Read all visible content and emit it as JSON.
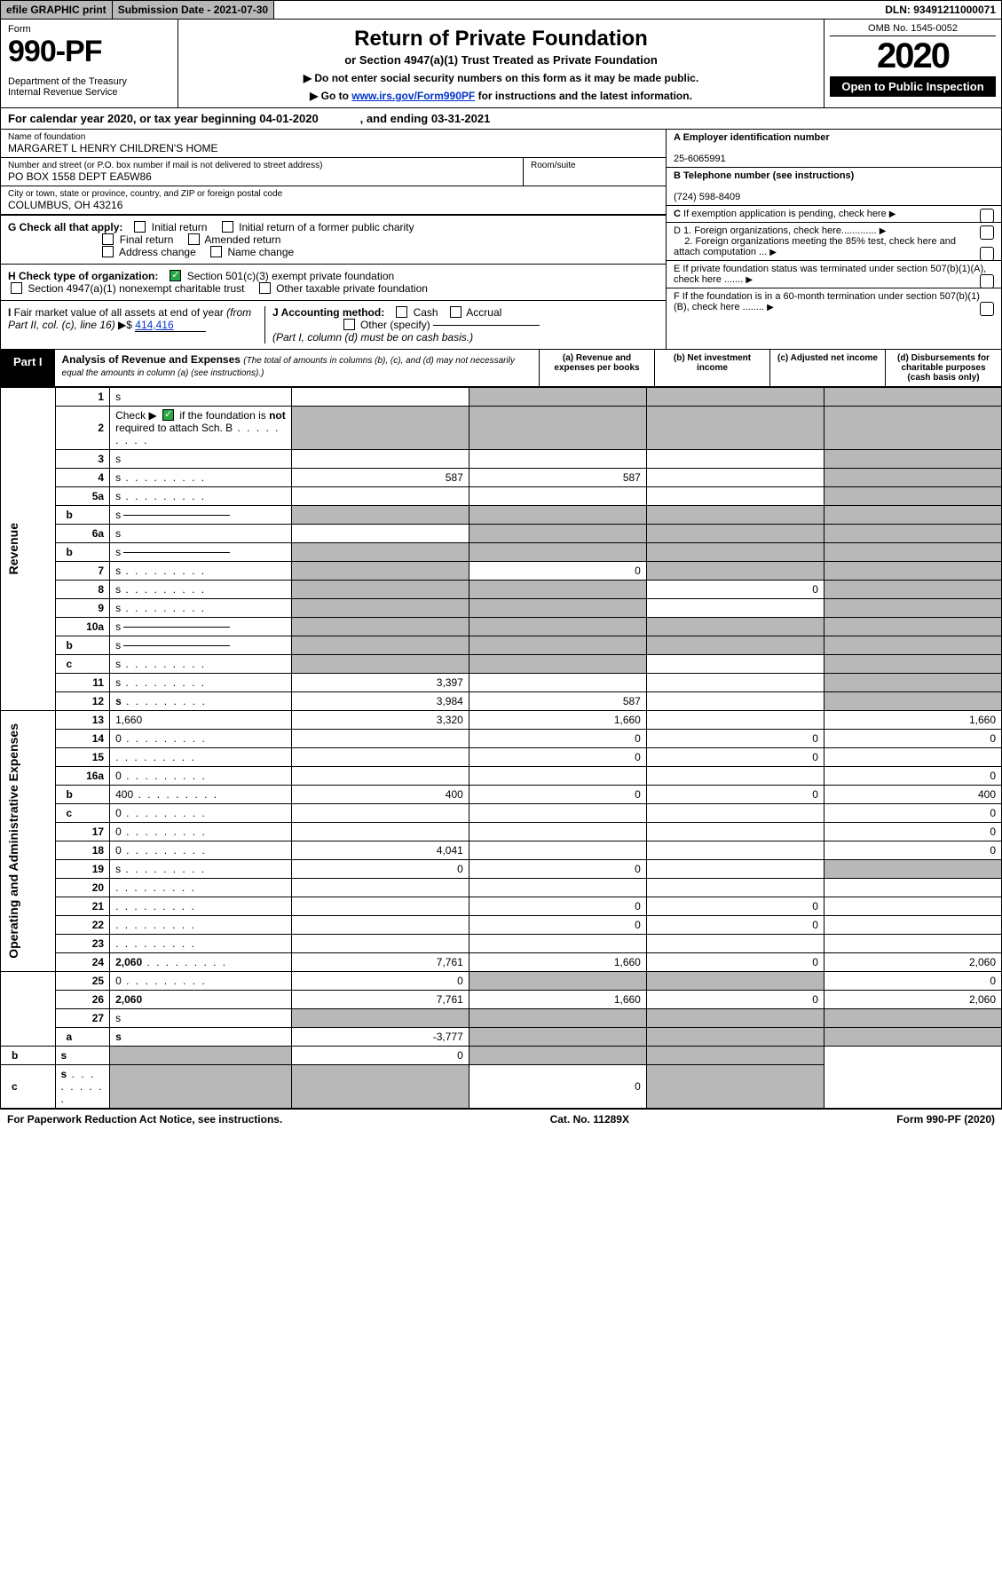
{
  "top": {
    "efile": "efile GRAPHIC print",
    "submission": "Submission Date - 2021-07-30",
    "dln": "DLN: 93491211000071"
  },
  "header": {
    "form_label": "Form",
    "form_number": "990-PF",
    "dept": "Department of the Treasury\nInternal Revenue Service",
    "title": "Return of Private Foundation",
    "subtitle": "or Section 4947(a)(1) Trust Treated as Private Foundation",
    "inst1": "▶ Do not enter social security numbers on this form as it may be made public.",
    "inst2_pre": "▶ Go to ",
    "inst2_link": "www.irs.gov/Form990PF",
    "inst2_post": " for instructions and the latest information.",
    "omb": "OMB No. 1545-0052",
    "year": "2020",
    "open_public": "Open to Public Inspection"
  },
  "cal_year": "For calendar year 2020, or tax year beginning 04-01-2020             , and ending 03-31-2021",
  "identity": {
    "name_label": "Name of foundation",
    "name": "MARGARET L HENRY CHILDREN'S HOME",
    "addr_label": "Number and street (or P.O. box number if mail is not delivered to street address)",
    "addr": "PO BOX 1558 DEPT EA5W86",
    "room_label": "Room/suite",
    "city_label": "City or town, state or province, country, and ZIP or foreign postal code",
    "city": "COLUMBUS, OH  43216",
    "ein_label": "A Employer identification number",
    "ein": "25-6065991",
    "tel_label": "B Telephone number (see instructions)",
    "tel": "(724) 598-8409",
    "c_label": "C If exemption application is pending, check here",
    "d1": "D 1. Foreign organizations, check here.............",
    "d2": "2. Foreign organizations meeting the 85% test, check here and attach computation ...",
    "e_label": "E  If private foundation status was terminated under section 507(b)(1)(A), check here .......",
    "f_label": "F  If the foundation is in a 60-month termination under section 507(b)(1)(B), check here ........"
  },
  "g": {
    "label": "G Check all that apply:",
    "opts": [
      "Initial return",
      "Initial return of a former public charity",
      "Final return",
      "Amended return",
      "Address change",
      "Name change"
    ]
  },
  "h": {
    "label": "H Check type of organization:",
    "opt1": "Section 501(c)(3) exempt private foundation",
    "opt2": "Section 4947(a)(1) nonexempt charitable trust",
    "opt3": "Other taxable private foundation"
  },
  "i": {
    "label": "I Fair market value of all assets at end of year (from Part II, col. (c), line 16) ▶$",
    "val": "414,416"
  },
  "j": {
    "label": "J Accounting method:",
    "cash": "Cash",
    "accrual": "Accrual",
    "other": "Other (specify)",
    "note": "(Part I, column (d) must be on cash basis.)"
  },
  "part1": {
    "label": "Part I",
    "title": "Analysis of Revenue and Expenses",
    "note": "(The total of amounts in columns (b), (c), and (d) may not necessarily equal the amounts in column (a) (see instructions).)",
    "col_a": "(a)    Revenue and expenses per books",
    "col_b": "(b)  Net investment income",
    "col_c": "(c)  Adjusted net income",
    "col_d": "(d)  Disbursements for charitable purposes (cash basis only)"
  },
  "side": {
    "revenue": "Revenue",
    "expenses": "Operating and Administrative Expenses"
  },
  "rows": [
    {
      "n": "1",
      "d": "s",
      "a": "",
      "b": "s",
      "c": "s"
    },
    {
      "n": "2",
      "d": "s",
      "a": "s",
      "b": "s",
      "c": "s",
      "dots": true,
      "note": "not"
    },
    {
      "n": "3",
      "d": "s",
      "a": "",
      "b": "",
      "c": ""
    },
    {
      "n": "4",
      "d": "s",
      "a": "587",
      "b": "587",
      "c": "",
      "dots": true
    },
    {
      "n": "5a",
      "d": "s",
      "a": "",
      "b": "",
      "c": "",
      "dots": true
    },
    {
      "n": "b",
      "d": "s",
      "a": "s",
      "b": "s",
      "c": "s",
      "uline": true,
      "sub": true
    },
    {
      "n": "6a",
      "d": "s",
      "a": "",
      "b": "s",
      "c": "s"
    },
    {
      "n": "b",
      "d": "s",
      "a": "s",
      "b": "s",
      "c": "s",
      "uline": true,
      "sub": true
    },
    {
      "n": "7",
      "d": "s",
      "a": "s",
      "b": "0",
      "c": "s",
      "dots": true
    },
    {
      "n": "8",
      "d": "s",
      "a": "s",
      "b": "s",
      "c": "0",
      "dots": true
    },
    {
      "n": "9",
      "d": "s",
      "a": "s",
      "b": "s",
      "c": "",
      "dots": true
    },
    {
      "n": "10a",
      "d": "s",
      "a": "s",
      "b": "s",
      "c": "s",
      "uline": true
    },
    {
      "n": "b",
      "d": "s",
      "a": "s",
      "b": "s",
      "c": "s",
      "uline": true,
      "sub": true,
      "dots": true
    },
    {
      "n": "c",
      "d": "s",
      "a": "s",
      "b": "s",
      "c": "",
      "sub": true,
      "dots": true
    },
    {
      "n": "11",
      "d": "s",
      "a": "3,397",
      "b": "",
      "c": "",
      "dots": true
    },
    {
      "n": "12",
      "d": "s",
      "a": "3,984",
      "b": "587",
      "c": "",
      "bold": true,
      "dots": true
    },
    {
      "n": "13",
      "d": "1,660",
      "a": "3,320",
      "b": "1,660",
      "c": ""
    },
    {
      "n": "14",
      "d": "0",
      "a": "",
      "b": "0",
      "c": "0",
      "dots": true
    },
    {
      "n": "15",
      "d": "",
      "a": "",
      "b": "0",
      "c": "0",
      "dots": true
    },
    {
      "n": "16a",
      "d": "0",
      "a": "",
      "b": "",
      "c": "",
      "dots": true
    },
    {
      "n": "b",
      "d": "400",
      "a": "400",
      "b": "0",
      "c": "0",
      "sub": true,
      "dots": true
    },
    {
      "n": "c",
      "d": "0",
      "a": "",
      "b": "",
      "c": "",
      "sub": true,
      "dots": true
    },
    {
      "n": "17",
      "d": "0",
      "a": "",
      "b": "",
      "c": "",
      "dots": true
    },
    {
      "n": "18",
      "d": "0",
      "a": "4,041",
      "b": "",
      "c": "",
      "dots": true
    },
    {
      "n": "19",
      "d": "s",
      "a": "0",
      "b": "0",
      "c": "",
      "dots": true
    },
    {
      "n": "20",
      "d": "",
      "a": "",
      "b": "",
      "c": "",
      "dots": true
    },
    {
      "n": "21",
      "d": "",
      "a": "",
      "b": "0",
      "c": "0",
      "dots": true
    },
    {
      "n": "22",
      "d": "",
      "a": "",
      "b": "0",
      "c": "0",
      "dots": true
    },
    {
      "n": "23",
      "d": "",
      "a": "",
      "b": "",
      "c": "",
      "dots": true
    },
    {
      "n": "24",
      "d": "2,060",
      "a": "7,761",
      "b": "1,660",
      "c": "0",
      "bold": true,
      "dots": true
    },
    {
      "n": "25",
      "d": "0",
      "a": "0",
      "b": "s",
      "c": "s",
      "dots": true
    },
    {
      "n": "26",
      "d": "2,060",
      "a": "7,761",
      "b": "1,660",
      "c": "0",
      "bold": true
    },
    {
      "n": "27",
      "d": "s",
      "a": "s",
      "b": "s",
      "c": "s"
    },
    {
      "n": "a",
      "d": "s",
      "a": "-3,777",
      "b": "s",
      "c": "s",
      "bold": true,
      "sub": true
    },
    {
      "n": "b",
      "d": "s",
      "a": "s",
      "b": "0",
      "c": "s",
      "bold": true,
      "sub": true
    },
    {
      "n": "c",
      "d": "s",
      "a": "s",
      "b": "s",
      "c": "0",
      "bold": true,
      "sub": true,
      "dots": true
    }
  ],
  "footer": {
    "left": "For Paperwork Reduction Act Notice, see instructions.",
    "center": "Cat. No. 11289X",
    "right": "Form 990-PF (2020)"
  }
}
